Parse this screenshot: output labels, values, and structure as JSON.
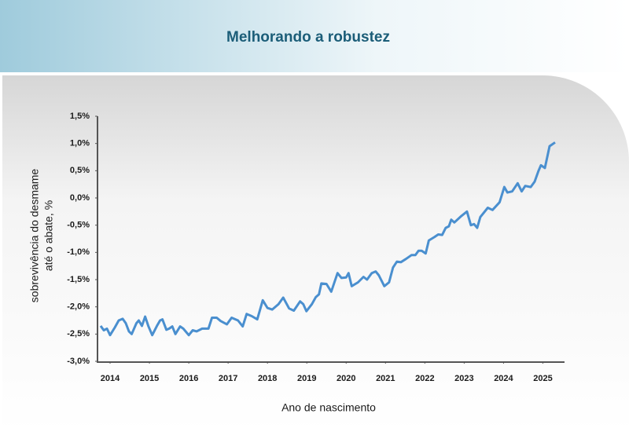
{
  "chart_data": {
    "type": "line",
    "title": "Melhorando a robustez",
    "xlabel": "Ano de nascimento",
    "ylabel": [
      "sobrevivência do desmame",
      "até o abate, %"
    ],
    "xlim": [
      2013.68,
      2025.55
    ],
    "xticks": [
      2014,
      2015,
      2016,
      2017,
      2018,
      2019,
      2020,
      2021,
      2022,
      2023,
      2024,
      2025
    ],
    "ylim": [
      -3,
      1.5
    ],
    "yticks": [
      {
        "value": -3,
        "label": "-3,0%"
      },
      {
        "value": -2.5,
        "label": "-2,5%"
      },
      {
        "value": -2,
        "label": "-2,0%"
      },
      {
        "value": -1.5,
        "label": "-1,5%"
      },
      {
        "value": -1,
        "label": "-1,0%"
      },
      {
        "value": -0.5,
        "label": "-0,5%"
      },
      {
        "value": 0,
        "label": "0,0%"
      },
      {
        "value": 0.5,
        "label": "0,5%"
      },
      {
        "value": 1,
        "label": "1,0%"
      },
      {
        "value": 1.5,
        "label": "1,5%"
      }
    ],
    "x": [
      2013.76,
      2013.84,
      2013.92,
      2014.0,
      2014.12,
      2014.22,
      2014.32,
      2014.4,
      2014.48,
      2014.55,
      2014.67,
      2014.73,
      2014.81,
      2014.89,
      2014.97,
      2015.07,
      2015.19,
      2015.27,
      2015.33,
      2015.43,
      2015.5,
      2015.58,
      2015.66,
      2015.78,
      2015.86,
      2016.0,
      2016.1,
      2016.2,
      2016.34,
      2016.5,
      2016.59,
      2016.71,
      2016.81,
      2016.97,
      2017.09,
      2017.25,
      2017.37,
      2017.47,
      2017.6,
      2017.74,
      2017.88,
      2018.0,
      2018.12,
      2018.28,
      2018.4,
      2018.55,
      2018.67,
      2018.83,
      2018.91,
      2018.99,
      2019.13,
      2019.23,
      2019.31,
      2019.37,
      2019.5,
      2019.62,
      2019.78,
      2019.88,
      2020.0,
      2020.06,
      2020.14,
      2020.3,
      2020.44,
      2020.53,
      2020.65,
      2020.75,
      2020.83,
      2020.97,
      2021.09,
      2021.19,
      2021.29,
      2021.39,
      2021.52,
      2021.66,
      2021.76,
      2021.84,
      2021.92,
      2022.02,
      2022.1,
      2022.24,
      2022.34,
      2022.44,
      2022.53,
      2022.61,
      2022.67,
      2022.75,
      2022.93,
      2023.07,
      2023.17,
      2023.25,
      2023.33,
      2023.41,
      2023.6,
      2023.72,
      2023.9,
      2024.02,
      2024.1,
      2024.22,
      2024.36,
      2024.46,
      2024.55,
      2024.69,
      2024.79,
      2024.89,
      2024.95,
      2025.05,
      2025.17,
      2025.31
    ],
    "series": [
      {
        "name": "sobrevivência",
        "color": "#4a8fcf",
        "values": [
          -2.35,
          -2.43,
          -2.4,
          -2.52,
          -2.38,
          -2.25,
          -2.22,
          -2.3,
          -2.45,
          -2.5,
          -2.3,
          -2.25,
          -2.35,
          -2.18,
          -2.35,
          -2.52,
          -2.35,
          -2.25,
          -2.23,
          -2.42,
          -2.4,
          -2.36,
          -2.5,
          -2.36,
          -2.4,
          -2.52,
          -2.43,
          -2.45,
          -2.4,
          -2.4,
          -2.2,
          -2.2,
          -2.26,
          -2.32,
          -2.2,
          -2.25,
          -2.36,
          -2.13,
          -2.17,
          -2.23,
          -1.88,
          -2.02,
          -2.05,
          -1.95,
          -1.83,
          -2.03,
          -2.07,
          -1.9,
          -1.95,
          -2.08,
          -1.95,
          -1.82,
          -1.77,
          -1.57,
          -1.58,
          -1.72,
          -1.38,
          -1.47,
          -1.46,
          -1.38,
          -1.62,
          -1.55,
          -1.45,
          -1.5,
          -1.38,
          -1.35,
          -1.42,
          -1.62,
          -1.55,
          -1.28,
          -1.17,
          -1.18,
          -1.12,
          -1.05,
          -1.05,
          -0.97,
          -0.97,
          -1.02,
          -0.78,
          -0.72,
          -0.67,
          -0.68,
          -0.55,
          -0.52,
          -0.4,
          -0.45,
          -0.33,
          -0.25,
          -0.5,
          -0.48,
          -0.55,
          -0.35,
          -0.18,
          -0.22,
          -0.08,
          0.2,
          0.1,
          0.12,
          0.27,
          0.12,
          0.22,
          0.2,
          0.3,
          0.5,
          0.6,
          0.55,
          0.95,
          1.02
        ]
      }
    ]
  }
}
